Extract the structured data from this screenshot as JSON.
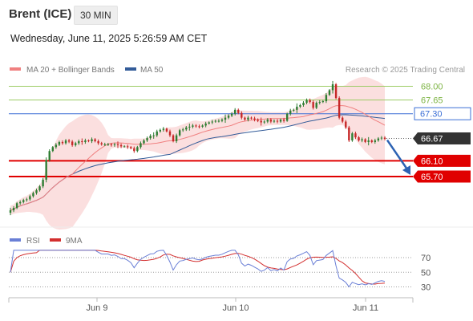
{
  "header": {
    "instrument": "Brent (ICE)",
    "timeframe": "30 MIN",
    "datetime": "Wednesday, June 11, 2025 5:26:59 AM CET"
  },
  "chart_data": [
    {
      "type": "candlestick",
      "legend": [
        {
          "label": "MA 20 + Bollinger Bands",
          "color": "#f08080"
        },
        {
          "label": "MA 50",
          "color": "#335c99"
        }
      ],
      "legend_placement": "top-left",
      "credit": "Research © 2025 Trading Central",
      "x_tick_labels": [
        "Jun 9",
        "Jun 10",
        "Jun 11"
      ],
      "y_range": [
        64.3,
        68.4
      ],
      "price_lines": [
        {
          "value": 68.0,
          "label": "68.00",
          "style": "green-thin"
        },
        {
          "value": 67.65,
          "label": "67.65",
          "style": "green-thin"
        },
        {
          "value": 67.3,
          "label": "67.30",
          "style": "blue-box"
        },
        {
          "value": 66.67,
          "label": "66.67",
          "style": "current-price"
        },
        {
          "value": 66.1,
          "label": "66.10",
          "style": "red-box"
        },
        {
          "value": 65.7,
          "label": "65.70",
          "style": "red-box"
        }
      ],
      "forecast_arrow": {
        "from": 66.67,
        "to": 65.7,
        "direction": "down",
        "color": "#2c62b3"
      },
      "colors": {
        "up": "#2e7d32",
        "down": "#c62828",
        "band": "#f9d4d4",
        "ma20": "#f08080",
        "ma50": "#335c99"
      },
      "series": {
        "close": [
          64.84,
          64.9,
          65.02,
          65.05,
          65.1,
          65.12,
          65.2,
          65.28,
          65.35,
          65.45,
          65.62,
          66.12,
          66.35,
          66.45,
          66.51,
          66.58,
          66.55,
          66.62,
          66.59,
          66.5,
          66.55,
          66.6,
          66.58,
          66.62,
          66.6,
          66.65,
          66.6,
          66.55,
          66.52,
          66.52,
          66.52,
          66.5,
          66.52,
          66.5,
          66.47,
          66.47,
          66.45,
          66.42,
          66.35,
          66.45,
          66.55,
          66.62,
          66.68,
          66.74,
          66.75,
          66.85,
          66.89,
          66.92,
          66.85,
          66.75,
          66.6,
          66.75,
          66.88,
          66.9,
          66.95,
          66.97,
          67.0,
          66.98,
          66.97,
          67.0,
          67.05,
          67.08,
          67.1,
          67.12,
          67.12,
          67.15,
          67.2,
          67.25,
          67.3,
          67.4,
          67.32,
          67.2,
          67.15,
          67.2,
          67.18,
          67.15,
          67.12,
          67.08,
          67.1,
          67.15,
          67.1,
          67.12,
          67.1,
          67.15,
          67.12,
          67.3,
          67.38,
          67.4,
          67.48,
          67.52,
          67.58,
          67.65,
          67.6,
          67.45,
          67.58,
          67.6,
          67.62,
          67.78,
          67.9,
          68.05,
          67.7,
          67.2,
          67.1,
          66.95,
          66.62,
          66.8,
          66.7,
          66.62,
          66.65,
          66.58,
          66.62,
          66.58,
          66.62,
          66.67,
          66.69,
          66.66
        ]
      }
    },
    {
      "type": "line",
      "legend": [
        {
          "label": "RSI",
          "color": "#6a7fd6"
        },
        {
          "label": "9MA",
          "color": "#d32f2f"
        }
      ],
      "y_ticks": [
        70,
        50,
        30
      ],
      "y_range": [
        22,
        82
      ]
    }
  ]
}
